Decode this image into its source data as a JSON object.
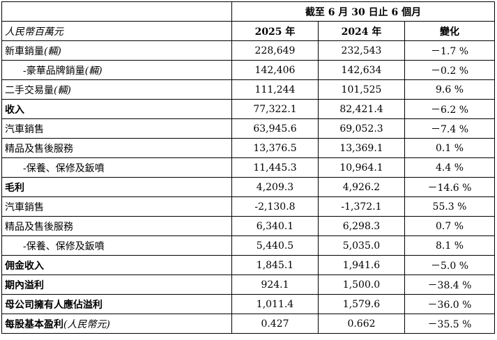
{
  "header": {
    "period": "截至 6 月 30 日止 6 個月",
    "unit_label": "人民幣百萬元",
    "col_2025": "2025 年",
    "col_2024": "2024 年",
    "col_change": "變化"
  },
  "rows": [
    {
      "label": "新車銷量",
      "suffix": "(輛)",
      "v2025": "228,649",
      "v2024": "232,543",
      "change": "－1.7 %"
    },
    {
      "label": "-豪華品牌銷量",
      "suffix": "(輛)",
      "v2025": "142,406",
      "v2024": "142,634",
      "change": "－0.2 %"
    },
    {
      "label": "二手交易量",
      "suffix": "(輛)",
      "v2025": "111,244",
      "v2024": "101,525",
      "change": "9.6 %"
    },
    {
      "label": "收入",
      "suffix": "",
      "v2025": "77,322.1",
      "v2024": "82,421.4",
      "change": "－6.2 %"
    },
    {
      "label": "汽車銷售",
      "suffix": "",
      "v2025": "63,945.6",
      "v2024": "69,052.3",
      "change": "－7.4 %"
    },
    {
      "label": "精品及售後服務",
      "suffix": "",
      "v2025": "13,376.5",
      "v2024": "13,369.1",
      "change": "0.1 %"
    },
    {
      "label": "-保養、保修及鈑噴",
      "suffix": "",
      "v2025": "11,445.3",
      "v2024": "10,964.1",
      "change": "4.4 %"
    },
    {
      "label": "毛利",
      "suffix": "",
      "v2025": "4,209.3",
      "v2024": "4,926.2",
      "change": "－14.6 %"
    },
    {
      "label": "汽車銷售",
      "suffix": "",
      "v2025": "-2,130.8",
      "v2024": "-1,372.1",
      "change": "55.3 %"
    },
    {
      "label": "精品及售後服務",
      "suffix": "",
      "v2025": "6,340.1",
      "v2024": "6,298.3",
      "change": "0.7 %"
    },
    {
      "label": "-保養、保修及鈑噴",
      "suffix": "",
      "v2025": "5,440.5",
      "v2024": "5,035.0",
      "change": "8.1 %"
    },
    {
      "label": "佣金收入",
      "suffix": "",
      "v2025": "1,845.1",
      "v2024": "1,941.6",
      "change": "－5.0 %"
    },
    {
      "label": "期內溢利",
      "suffix": "",
      "v2025": "924.1",
      "v2024": "1,500.0",
      "change": "－38.4 %"
    },
    {
      "label": "母公司擁有人應佔溢利",
      "suffix": "",
      "v2025": "1,011.4",
      "v2024": "1,579.6",
      "change": "－36.0 %"
    },
    {
      "label": "每股基本盈利",
      "suffix": "(人民幣元)",
      "v2025": "0.427",
      "v2024": "0.662",
      "change": "－35.5 %"
    }
  ]
}
